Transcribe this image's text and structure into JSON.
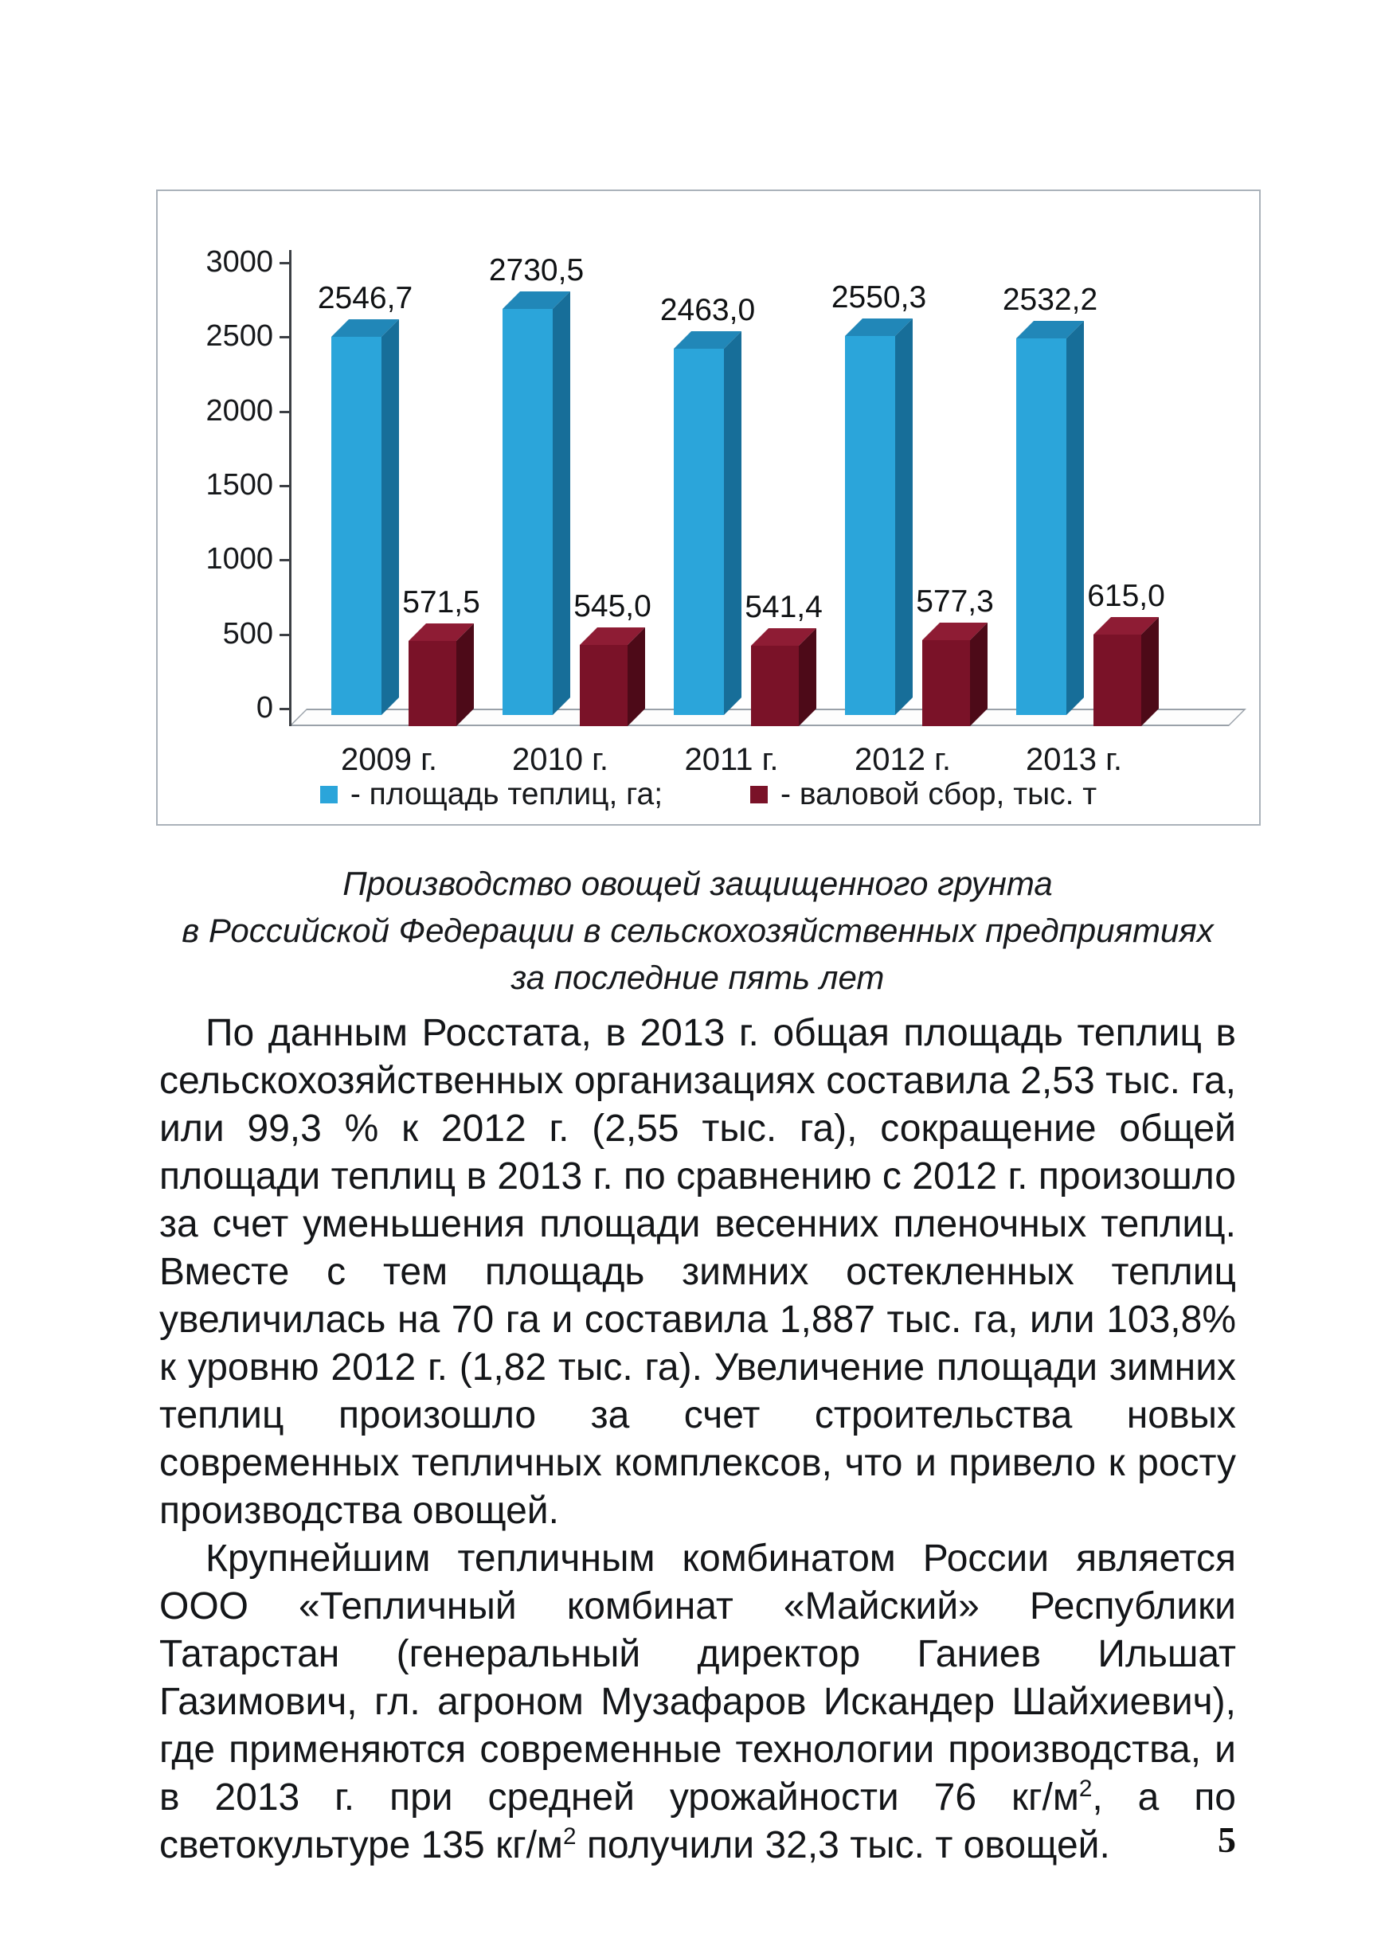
{
  "page": {
    "number": "5"
  },
  "chart_data": {
    "type": "bar",
    "categories": [
      "2009 г.",
      "2010 г.",
      "2011 г.",
      "2012 г.",
      "2013 г."
    ],
    "series": [
      {
        "name": "- площадь теплиц, га;",
        "values": [
          2546.7,
          2730.5,
          2463.0,
          2550.3,
          2532.2
        ],
        "labels": [
          "2546,7",
          "2730,5",
          "2463,0",
          "2550,3",
          "2532,2"
        ],
        "colors": {
          "front": "#2ba5da",
          "top": "#2187b8",
          "side": "#176e99"
        }
      },
      {
        "name": "- валовой сбор, тыс. т",
        "values": [
          571.5,
          545.0,
          541.4,
          577.3,
          615.0
        ],
        "labels": [
          "571,5",
          "545,0",
          "541,4",
          "577,3",
          "615,0"
        ],
        "colors": {
          "front": "#7a1228",
          "top": "#8e1c34",
          "side": "#4d0a18"
        }
      }
    ],
    "ylim": [
      0,
      3000
    ],
    "yticks": [
      3000,
      2500,
      2000,
      1500,
      1000,
      500,
      0
    ],
    "xlabel": "",
    "ylabel": "",
    "legend_position": "bottom",
    "grid": false
  },
  "caption": {
    "line1": "Производство овощей защищенного грунта",
    "line2": "в Российской Федерации в сельскохозяйственных предприятиях",
    "line3": "за последние пять лет"
  },
  "body": {
    "p1": "По данным Росстата, в 2013 г. общая площадь теплиц в сельскохозяйственных организациях составила 2,53 тыс. га, или 99,3 % к 2012 г. (2,55 тыс. га), сокращение общей площади теплиц в 2013 г. по сравнению с 2012 г. произошло за счет уменьшения площади весенних пленочных теплиц. Вместе с тем площадь зимних остекленных теплиц увеличилась на 70 га и составила 1,887 тыс. га, или 103,8% к уровню 2012 г. (1,82 тыс. га). Увеличение площади зимних теплиц произошло за счет строительства новых современных тепличных комплексов, что и привело к росту производства овощей.",
    "p2_part1": "Крупнейшим тепличным комбинатом России является ООО «Тепличный комбинат «Майский» Республики Татарстан (генеральный директор Ганиев Ильшат Газимович, гл. агроном Музафаров Искандер Шайхиевич), где применяются современные технологии производства, и в 2013 г. при средней урожайности 76 кг/м",
    "p2_sup1": "2",
    "p2_part2": ", а по светокультуре 135 кг/м",
    "p2_sup2": "2",
    "p2_part3": " получили 32,3 тыс. т овощей."
  }
}
